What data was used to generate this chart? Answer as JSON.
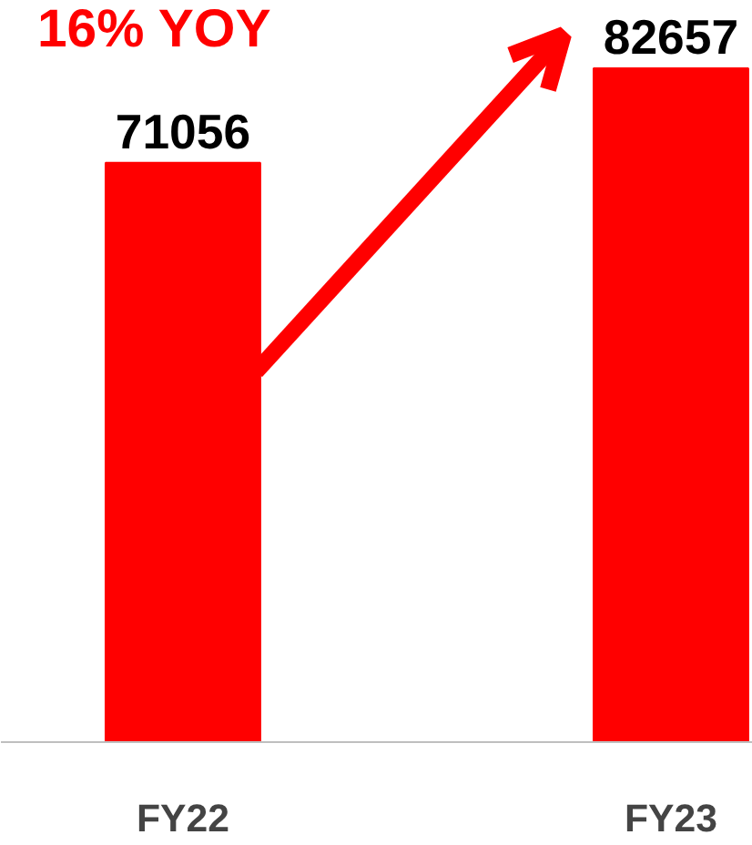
{
  "chart_data": {
    "type": "bar",
    "categories": [
      "FY22",
      "FY23"
    ],
    "values": [
      71056,
      82657
    ],
    "color": "#ff0000",
    "data_labels": true,
    "tick_labels": "x",
    "grid": false,
    "legend": false,
    "annotations": [
      "16% YOY"
    ]
  }
}
